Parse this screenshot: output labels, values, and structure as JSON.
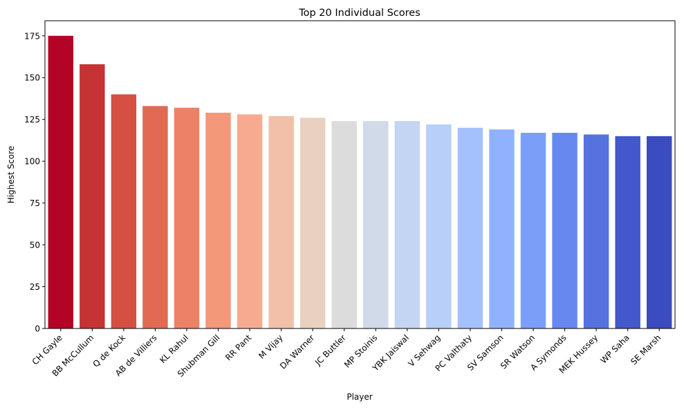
{
  "chart_data": {
    "type": "bar",
    "title": "Top 20 Individual Scores",
    "xlabel": "Player",
    "ylabel": "Highest Score",
    "ylim": [
      0,
      184
    ],
    "yticks": [
      0,
      25,
      50,
      75,
      100,
      125,
      150,
      175
    ],
    "grid": false,
    "categories": [
      "CH Gayle",
      "BB McCullum",
      "Q de Kock",
      "AB de Villiers",
      "KL Rahul",
      "Shubman Gill",
      "RR Pant",
      "M Vijay",
      "DA Warner",
      "JC Buttler",
      "MP Stoinis",
      "YBK Jaiswal",
      "V Sehwag",
      "PC Valthaty",
      "SV Samson",
      "SR Watson",
      "A Symonds",
      "MEK Hussey",
      "WP Saha",
      "SE Marsh"
    ],
    "values": [
      175,
      158,
      140,
      133,
      132,
      129,
      128,
      127,
      126,
      124,
      124,
      124,
      122,
      120,
      119,
      117,
      117,
      116,
      115,
      115
    ],
    "colors": [
      "#b40426",
      "#c53334",
      "#d55042",
      "#e26952",
      "#ec8165",
      "#f39878",
      "#f6ab90",
      "#f2c0a8",
      "#ead0c1",
      "#dddcdc",
      "#d0dae9",
      "#c4d5f3",
      "#b7cff9",
      "#a4c1fe",
      "#90b2fe",
      "#7b9ff9",
      "#6788ee",
      "#5572df",
      "#4358cb",
      "#3b4cc0"
    ],
    "palette": "coolwarm"
  }
}
